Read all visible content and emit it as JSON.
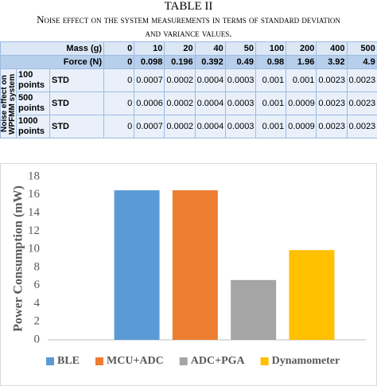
{
  "table": {
    "title": "TABLE II",
    "caption": "Noise effect on the system measurements in terms of standard deviation and variance values.",
    "header_rows": [
      {
        "label": "Mass (g)",
        "values": [
          0,
          10,
          20,
          40,
          50,
          100,
          200,
          400,
          500
        ]
      },
      {
        "label": "Force (N)",
        "values": [
          0,
          0.098,
          0.196,
          0.392,
          0.49,
          0.98,
          1.96,
          3.92,
          4.9
        ]
      }
    ],
    "group_label": "Noise effect on WPFMM system",
    "rows": [
      {
        "label": "100 points",
        "measure": "STD",
        "values": [
          0,
          0.0007,
          0.0002,
          0.0004,
          0.0003,
          0.001,
          0.001,
          0.0023,
          0.0023
        ]
      },
      {
        "label": "500 points",
        "measure": "STD",
        "values": [
          0,
          0.0006,
          0.0002,
          0.0004,
          0.0003,
          0.001,
          0.0009,
          0.0023,
          0.0023
        ]
      },
      {
        "label": "1000 points",
        "measure": "STD",
        "values": [
          0,
          0.0007,
          0.0002,
          0.0004,
          0.0003,
          0.001,
          0.0009,
          0.0023,
          0.0023
        ]
      }
    ]
  },
  "chart_data": {
    "type": "bar",
    "y_label": "Power Consumption (mW)",
    "categories": [
      null
    ],
    "series": [
      {
        "name": "BLE",
        "color": "#5b9bd5",
        "values": [
          16.5
        ]
      },
      {
        "name": "MCU+ADC",
        "color": "#ed7d31",
        "values": [
          16.5
        ]
      },
      {
        "name": "ADC+PGA",
        "color": "#a5a5a5",
        "values": [
          6.6
        ]
      },
      {
        "name": "Dynamometer",
        "color": "#ffc000",
        "values": [
          9.9
        ]
      }
    ],
    "ylim": [
      0,
      18
    ],
    "yticks": [
      0,
      2,
      4,
      6,
      8,
      10,
      12,
      14,
      16,
      18
    ],
    "grid": false,
    "legend": "bottom"
  }
}
